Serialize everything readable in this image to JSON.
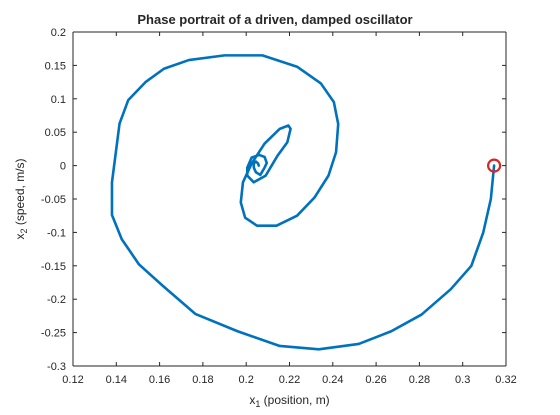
{
  "chart_data": {
    "type": "line",
    "title": "Phase portrait of a driven, damped oscillator",
    "xlabel": {
      "base": "x",
      "sub": "1",
      "rest": " (position, m)"
    },
    "ylabel": {
      "base": "x",
      "sub": "2",
      "rest": " (speed, m/s)"
    },
    "xlim": [
      0.12,
      0.32
    ],
    "ylim": [
      -0.3,
      0.2
    ],
    "xticks": [
      0.12,
      0.14,
      0.16,
      0.18,
      0.2,
      0.22,
      0.24,
      0.26,
      0.28,
      0.3,
      0.32
    ],
    "xtick_labels": [
      "0.12",
      "0.14",
      "0.16",
      "0.18",
      "0.2",
      "0.22",
      "0.24",
      "0.26",
      "0.28",
      "0.3",
      "0.32"
    ],
    "yticks": [
      -0.3,
      -0.25,
      -0.2,
      -0.15,
      -0.1,
      -0.05,
      0,
      0.05,
      0.1,
      0.15,
      0.2
    ],
    "ytick_labels": [
      "-0.3",
      "-0.25",
      "-0.2",
      "-0.15",
      "-0.1",
      "-0.05",
      "0",
      "0.05",
      "0.1",
      "0.15",
      "0.2"
    ],
    "grid": false,
    "series": [
      {
        "color": "#0072BD",
        "x": [
          0.3145,
          0.313,
          0.3095,
          0.304,
          0.2945,
          0.281,
          0.267,
          0.252,
          0.2335,
          0.2155,
          0.196,
          0.1765,
          0.1615,
          0.1505,
          0.1425,
          0.138,
          0.138,
          0.1415,
          0.1455,
          0.1535,
          0.162,
          0.1735,
          0.19,
          0.2075,
          0.2235,
          0.2345,
          0.2405,
          0.2425,
          0.2415,
          0.238,
          0.2315,
          0.2235,
          0.214,
          0.205,
          0.1995,
          0.1975,
          0.1985,
          0.2025,
          0.2085,
          0.2155,
          0.2195,
          0.2205,
          0.219,
          0.2145,
          0.209,
          0.2035,
          0.2005,
          0.2005,
          0.2025,
          0.206,
          0.2085,
          0.2095,
          0.2085,
          0.2065,
          0.2045,
          0.2035,
          0.2035,
          0.2045,
          0.2055,
          0.2058
        ],
        "y": [
          0.0,
          -0.05,
          -0.1,
          -0.15,
          -0.185,
          -0.223,
          -0.248,
          -0.267,
          -0.275,
          -0.27,
          -0.248,
          -0.222,
          -0.18,
          -0.148,
          -0.11,
          -0.074,
          -0.025,
          0.063,
          0.098,
          0.125,
          0.145,
          0.158,
          0.165,
          0.165,
          0.148,
          0.123,
          0.095,
          0.062,
          0.02,
          -0.015,
          -0.048,
          -0.075,
          -0.09,
          -0.09,
          -0.078,
          -0.055,
          -0.025,
          0.003,
          0.033,
          0.055,
          0.06,
          0.055,
          0.035,
          0.015,
          -0.015,
          -0.025,
          -0.015,
          -0.003,
          0.012,
          0.016,
          0.013,
          0.004,
          -0.003,
          -0.014,
          -0.01,
          -0.003,
          0.003,
          0.006,
          0.003,
          0.0
        ]
      }
    ],
    "marker": {
      "x": 0.3145,
      "y": 0.0,
      "color": "#D62728",
      "shape": "circle"
    }
  }
}
